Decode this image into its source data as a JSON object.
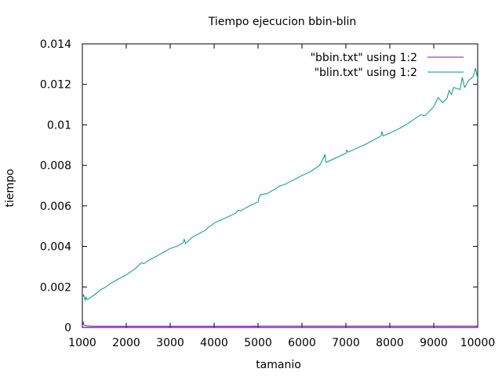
{
  "chart_data": {
    "type": "line",
    "title": "Tiempo ejecucion bbin-blin",
    "xlabel": "tamanio",
    "ylabel": "tiempo",
    "xlim": [
      1000,
      10000
    ],
    "ylim": [
      0,
      0.014
    ],
    "xticks": [
      1000,
      2000,
      3000,
      4000,
      5000,
      6000,
      7000,
      8000,
      9000,
      10000
    ],
    "xtick_labels": [
      "1000",
      "2000",
      "3000",
      "4000",
      "5000",
      "6000",
      "7000",
      "8000",
      "9000",
      "10000"
    ],
    "yticks": [
      0,
      0.002,
      0.004,
      0.006,
      0.008,
      0.01,
      0.012,
      0.014
    ],
    "ytick_labels": [
      "0",
      "0.002",
      "0.004",
      "0.006",
      "0.008",
      "0.01",
      "0.012",
      "0.014"
    ],
    "grid": false,
    "legend_position": "top-right",
    "series": [
      {
        "name": "\"bbin.txt\" using 1:2",
        "color": "#9400d3",
        "x": [
          1000,
          1020,
          1040,
          1060,
          1080,
          1100,
          1200,
          1400,
          2000,
          3000,
          4000,
          4800,
          4900,
          5000,
          5100,
          6000,
          7000,
          8000,
          9000,
          10000
        ],
        "y": [
          5e-05,
          0.00025,
          0.00012,
          0.0001,
          9e-05,
          8e-05,
          7e-05,
          6e-05,
          6e-05,
          6e-05,
          6e-05,
          6e-05,
          7e-05,
          6e-05,
          7e-05,
          7e-05,
          7e-05,
          7e-05,
          7e-05,
          7e-05
        ]
      },
      {
        "name": "\"blin.txt\" using 1:2",
        "color": "#009e73",
        "x": [
          1000,
          1030,
          1060,
          1080,
          1100,
          1150,
          1200,
          1300,
          1400,
          1500,
          1700,
          2000,
          2200,
          2300,
          2350,
          2400,
          2500,
          2800,
          3000,
          3200,
          3300,
          3320,
          3350,
          3500,
          3800,
          3900,
          3950,
          4000,
          4200,
          4500,
          4550,
          4600,
          4800,
          5000,
          5020,
          5050,
          5200,
          5400,
          5500,
          5600,
          6000,
          6200,
          6400,
          6500,
          6520,
          6550,
          6600,
          7000,
          7020,
          7050,
          7300,
          7500,
          7800,
          7820,
          7850,
          8000,
          8200,
          8400,
          8600,
          8700,
          8800,
          9000,
          9100,
          9200,
          9300,
          9350,
          9400,
          9450,
          9600,
          9650,
          9700,
          9800,
          9900,
          9950,
          10000
        ],
        "y": [
          0.00148,
          0.0016,
          0.00135,
          0.0015,
          0.00138,
          0.00142,
          0.0015,
          0.00165,
          0.00185,
          0.00195,
          0.00225,
          0.0026,
          0.0029,
          0.0031,
          0.0032,
          0.00315,
          0.0033,
          0.00365,
          0.0039,
          0.00405,
          0.0042,
          0.00435,
          0.00415,
          0.00445,
          0.0048,
          0.005,
          0.00505,
          0.00515,
          0.00535,
          0.00565,
          0.0058,
          0.00575,
          0.006,
          0.0062,
          0.0064,
          0.00655,
          0.0066,
          0.00685,
          0.007,
          0.00705,
          0.0075,
          0.0077,
          0.008,
          0.0084,
          0.00855,
          0.00815,
          0.0082,
          0.0086,
          0.00875,
          0.00865,
          0.0089,
          0.0091,
          0.00945,
          0.00965,
          0.00945,
          0.0096,
          0.0098,
          0.01005,
          0.01035,
          0.0105,
          0.01045,
          0.0109,
          0.01135,
          0.0111,
          0.0113,
          0.0117,
          0.0115,
          0.01185,
          0.01175,
          0.01235,
          0.01185,
          0.0122,
          0.0124,
          0.0128,
          0.0123
        ]
      }
    ]
  }
}
